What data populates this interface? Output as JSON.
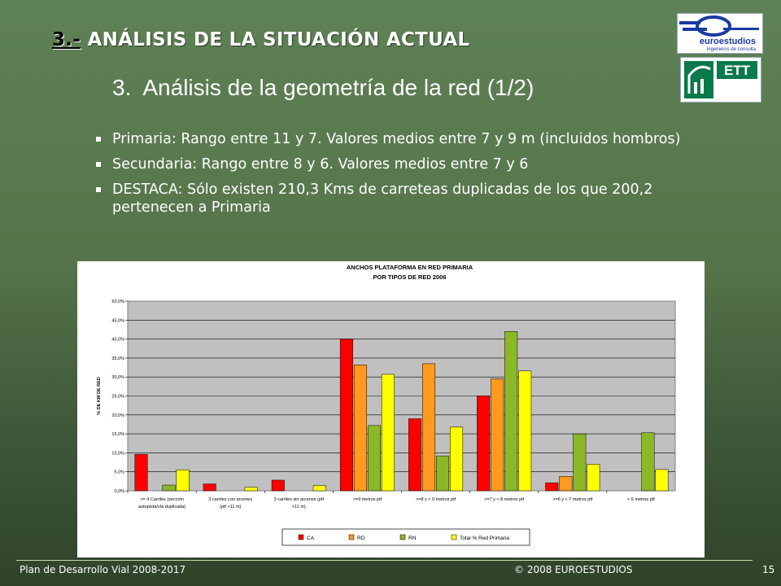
{
  "header": {
    "section_number": "3.-",
    "section_title": "ANÁLISIS DE LA SITUACIÓN ACTUAL",
    "subtitle_number": "3.",
    "subtitle": "Análisis de la geometría de la red (1/2)"
  },
  "logos": {
    "euroestudios_name": "euroestudios",
    "euroestudios_tagline": "Ingenieros de consulta",
    "ett_name": "ETT"
  },
  "bullets": [
    "Primaria: Rango entre 11 y 7. Valores medios entre 7 y 9 m (incluidos hombros)",
    "Secundaria: Rango entre 8 y 6. Valores medios entre 7 y 6",
    "DESTACA: Sólo existen 210,3 Kms de carreteas duplicadas de los que 200,2 pertenecen a Primaria"
  ],
  "chart_data": {
    "type": "bar",
    "title": "ANCHOS PLATAFORMA EN RED PRIMARIA",
    "subtitle": "POR TIPOS DE RED 2006",
    "ylabel": "% DE KM DE RED",
    "ylim": [
      0,
      50
    ],
    "yticks": [
      "0,0%",
      "5,0%",
      "10,0%",
      "15,0%",
      "20,0%",
      "25,0%",
      "30,0%",
      "35,0%",
      "40,0%",
      "45,0%",
      "50,0%"
    ],
    "grid": true,
    "legend_position": "bottom",
    "categories": [
      [
        ">= 4 Carriles (sección",
        "autopista/vía duplicada)"
      ],
      [
        "3 carriles con arcenes",
        "(ptf >11 m)"
      ],
      [
        "3 carriles sin arcenes (ptf",
        "<11 m)"
      ],
      [
        ">=9 metros ptf"
      ],
      [
        ">=8 y < 9 metros ptf"
      ],
      [
        ">=7 y < 8 metros ptf"
      ],
      [
        ">=6 y < 7 metros ptf"
      ],
      [
        "< 6 metros ptf"
      ]
    ],
    "series": [
      {
        "name": "CA",
        "color": "#ff0000",
        "values": [
          9.6,
          1.8,
          2.8,
          40.0,
          19.0,
          25.0,
          2.1,
          0.0
        ]
      },
      {
        "name": "RD",
        "color": "#ff9a1e",
        "values": [
          0.0,
          0.0,
          0.0,
          33.2,
          33.5,
          29.5,
          3.8,
          0.0
        ]
      },
      {
        "name": "RN",
        "color": "#8cb828",
        "values": [
          1.5,
          0.0,
          0.0,
          17.2,
          9.2,
          42.0,
          15.0,
          15.3
        ]
      },
      {
        "name": "Total % Red Primaria",
        "color": "#ffff00",
        "values": [
          5.5,
          0.9,
          1.4,
          30.7,
          16.8,
          31.6,
          7.0,
          5.6
        ]
      }
    ]
  },
  "footer": {
    "left": "Plan de Desarrollo Vial 2008-2017",
    "center": "© 2008 EUROESTUDIOS",
    "page": "15"
  }
}
